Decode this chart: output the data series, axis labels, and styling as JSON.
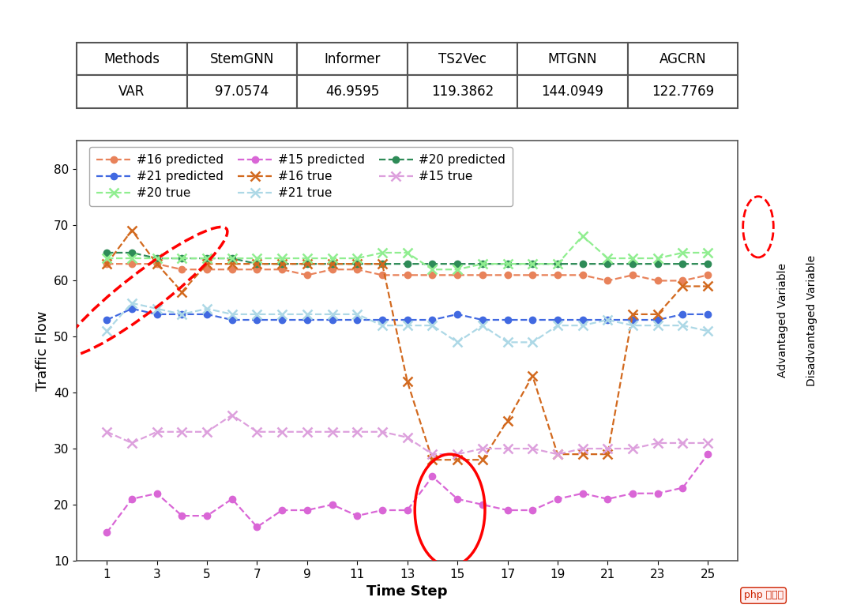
{
  "table_headers": [
    "Methods",
    "StemGNN",
    "Informer",
    "TS2Vec",
    "MTGNN",
    "AGCRN"
  ],
  "table_row": [
    "VAR",
    "97.0574",
    "46.9595",
    "119.3862",
    "144.0949",
    "122.7769"
  ],
  "x": [
    1,
    2,
    3,
    4,
    5,
    6,
    7,
    8,
    9,
    10,
    11,
    12,
    13,
    14,
    15,
    16,
    17,
    18,
    19,
    20,
    21,
    22,
    23,
    24,
    25
  ],
  "line16_pred": [
    63,
    63,
    63,
    62,
    62,
    62,
    62,
    62,
    61,
    62,
    62,
    61,
    61,
    61,
    61,
    61,
    61,
    61,
    61,
    61,
    60,
    61,
    60,
    60,
    61
  ],
  "line15_pred": [
    15,
    21,
    22,
    18,
    18,
    21,
    16,
    19,
    19,
    20,
    18,
    19,
    19,
    25,
    21,
    20,
    19,
    19,
    21,
    22,
    21,
    22,
    22,
    23,
    29
  ],
  "line20_pred": [
    65,
    65,
    64,
    64,
    64,
    64,
    63,
    63,
    63,
    63,
    63,
    63,
    63,
    63,
    63,
    63,
    63,
    63,
    63,
    63,
    63,
    63,
    63,
    63,
    63
  ],
  "line21_pred": [
    53,
    55,
    54,
    54,
    54,
    53,
    53,
    53,
    53,
    53,
    53,
    53,
    53,
    53,
    54,
    53,
    53,
    53,
    53,
    53,
    53,
    53,
    53,
    54,
    54
  ],
  "line16_true": [
    63,
    69,
    63,
    58,
    63,
    63,
    63,
    63,
    63,
    63,
    63,
    63,
    42,
    28,
    28,
    28,
    35,
    43,
    29,
    29,
    29,
    54,
    54,
    59,
    59
  ],
  "line15_true": [
    33,
    31,
    33,
    33,
    33,
    36,
    33,
    33,
    33,
    33,
    33,
    33,
    32,
    29,
    29,
    30,
    30,
    30,
    29,
    30,
    30,
    30,
    31,
    31,
    31
  ],
  "line20_true": [
    64,
    64,
    64,
    64,
    64,
    64,
    64,
    64,
    64,
    64,
    64,
    65,
    65,
    62,
    62,
    63,
    63,
    63,
    63,
    68,
    64,
    64,
    64,
    65,
    65
  ],
  "line21_true": [
    51,
    56,
    55,
    54,
    55,
    54,
    54,
    54,
    54,
    54,
    54,
    52,
    52,
    52,
    49,
    52,
    49,
    49,
    52,
    52,
    53,
    52,
    52,
    52,
    51
  ],
  "color_16_pred": "#E8825A",
  "color_15_pred": "#D966D6",
  "color_20_pred": "#2E8B57",
  "color_21_pred": "#4169E1",
  "color_16_true": "#D2691E",
  "color_15_true": "#DDA0DD",
  "color_20_true": "#90EE90",
  "color_21_true": "#ADD8E6",
  "ylabel": "Traffic Flow",
  "xlabel": "Time Step",
  "ylim": [
    10,
    85
  ],
  "yticks": [
    10,
    20,
    30,
    40,
    50,
    60,
    70,
    80
  ],
  "xticks": [
    1,
    3,
    5,
    7,
    9,
    11,
    13,
    15,
    17,
    19,
    21,
    23,
    25
  ],
  "background_color": "#FFFFFF"
}
